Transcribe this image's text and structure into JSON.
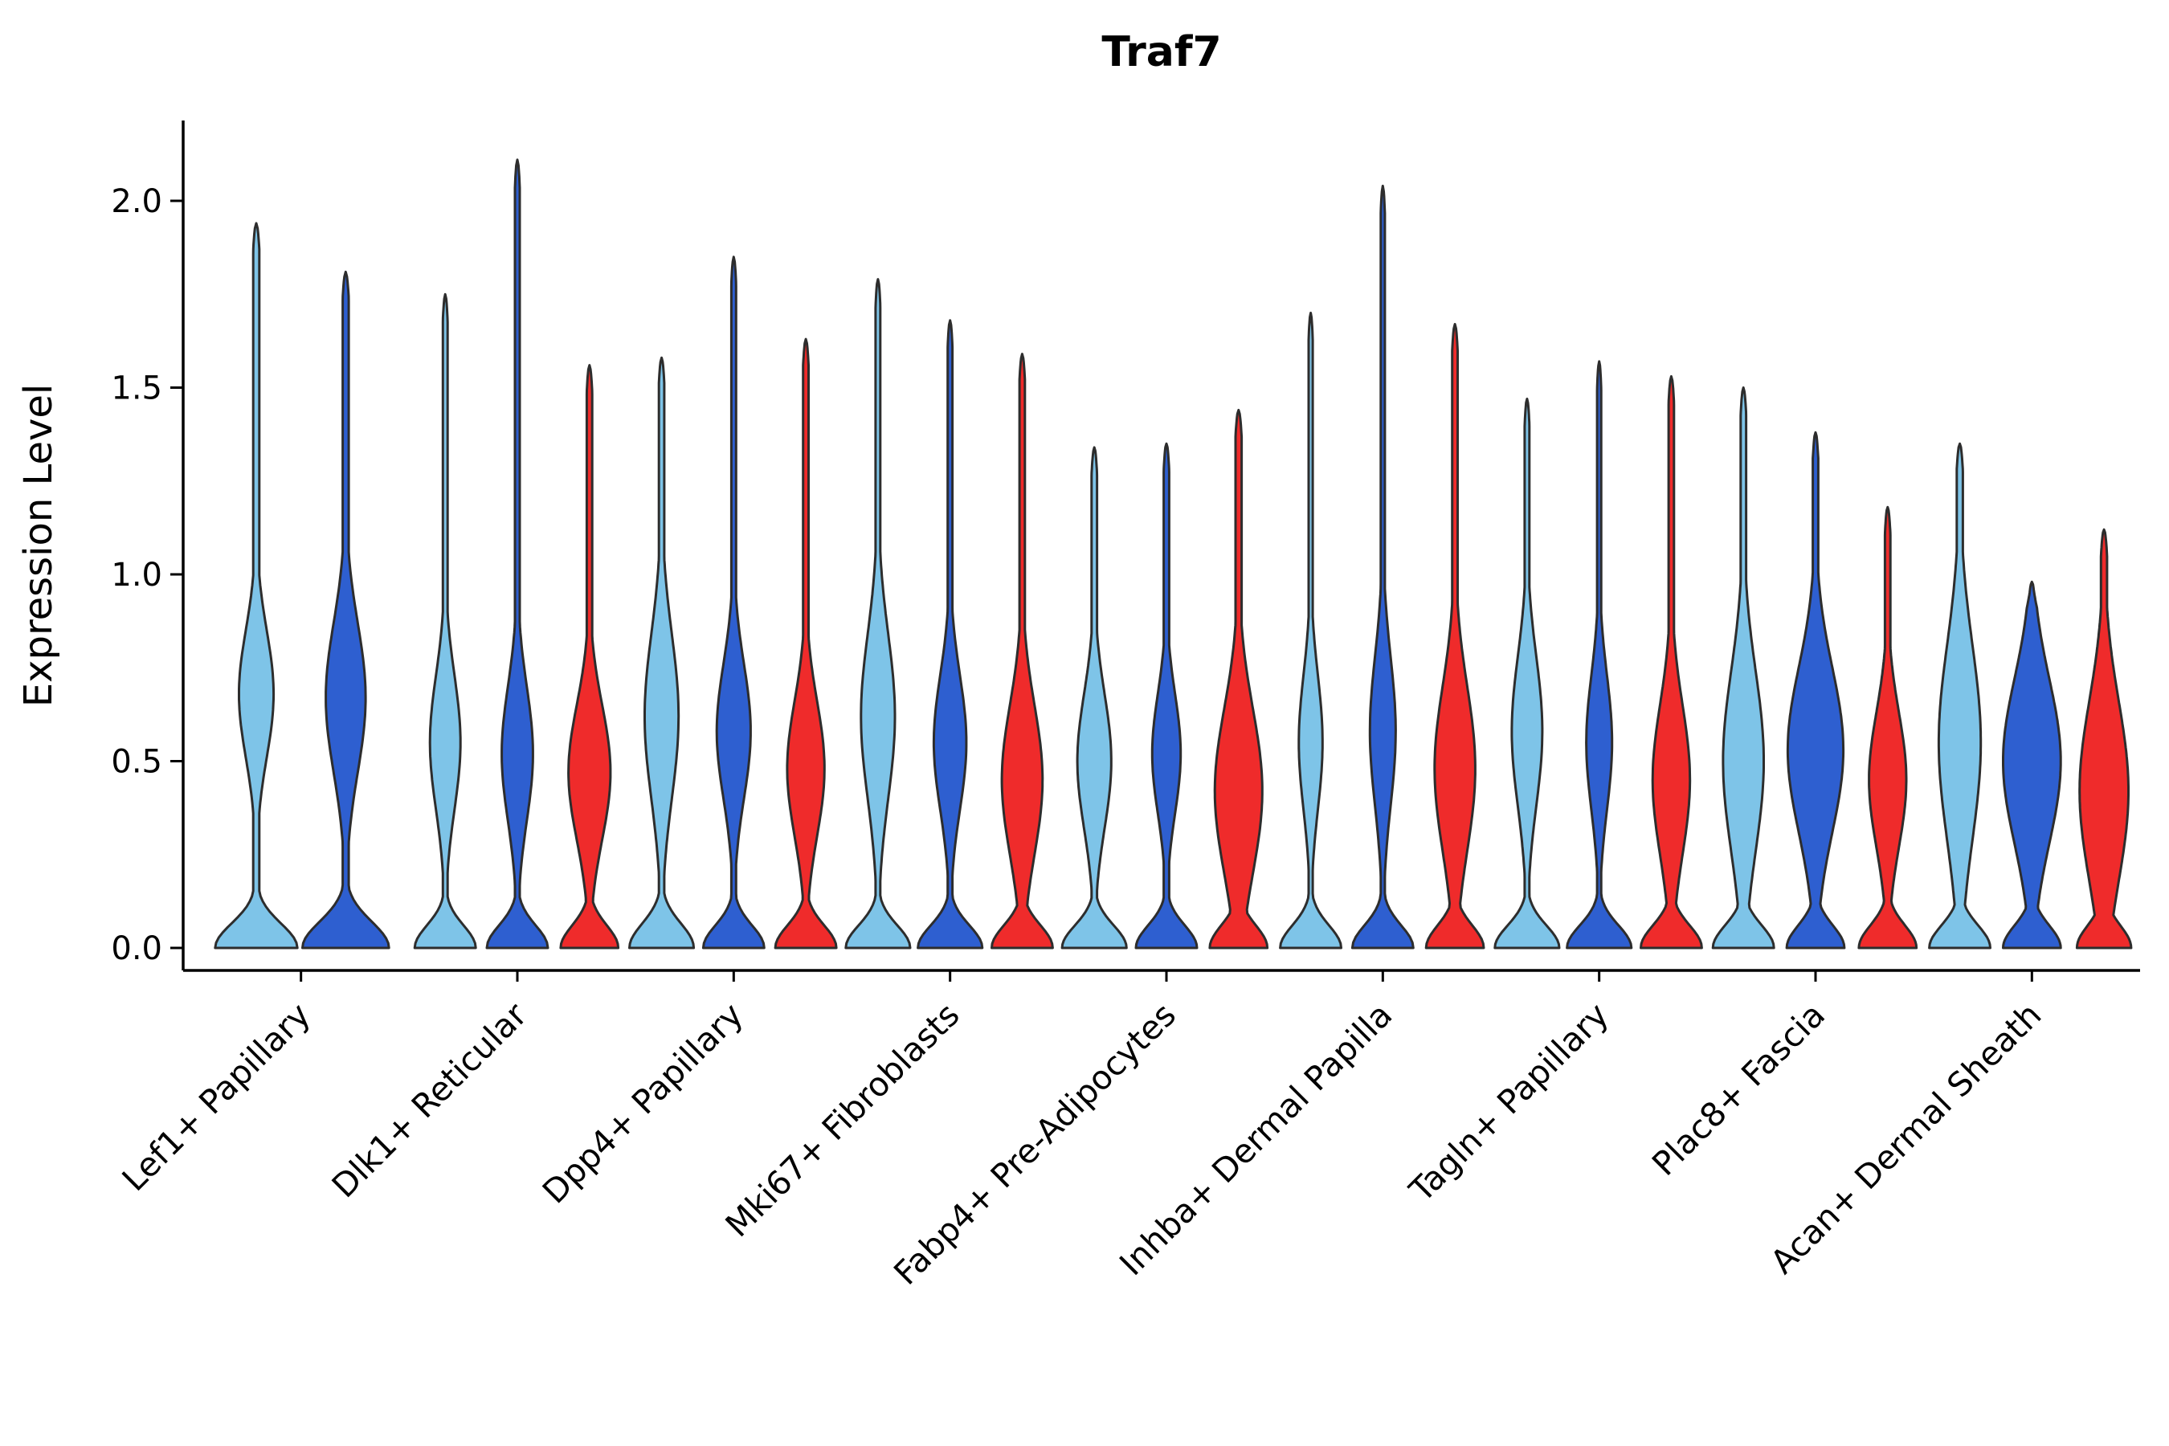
{
  "chart_data": {
    "type": "violin",
    "title": "Traf7",
    "ylabel": "Expression Level",
    "xlabel": "",
    "ylim": [
      0,
      2.2
    ],
    "grid": false,
    "legend": "none",
    "yticks": [
      {
        "value": 0.0,
        "label": "0.0"
      },
      {
        "value": 0.5,
        "label": "0.5"
      },
      {
        "value": 1.0,
        "label": "1.0"
      },
      {
        "value": 1.5,
        "label": "1.5"
      },
      {
        "value": 2.0,
        "label": "2.0"
      }
    ],
    "palette": {
      "light_blue": "#7EC4E8",
      "dark_blue": "#2E5FD0",
      "red": "#EF2B2B",
      "outline": "#2d2d2d"
    },
    "groups": [
      {
        "label": "Lef1+ Papillary",
        "violins": [
          {
            "color": "light_blue",
            "max": 1.94,
            "base_w": 0.95,
            "base_s": 0.065,
            "bulge_y": 0.68,
            "bulge_w": 0.4,
            "bulge_s": 0.17,
            "stem_w": 0.07
          },
          {
            "color": "dark_blue",
            "max": 1.81,
            "base_w": 1.0,
            "base_s": 0.07,
            "bulge_y": 0.67,
            "bulge_w": 0.46,
            "bulge_s": 0.2,
            "stem_w": 0.07
          }
        ]
      },
      {
        "label": "Dlk1+ Reticular",
        "violins": [
          {
            "color": "light_blue",
            "max": 1.75,
            "base_w": 0.9,
            "base_s": 0.06,
            "bulge_y": 0.55,
            "bulge_w": 0.45,
            "bulge_s": 0.18,
            "stem_w": 0.07
          },
          {
            "color": "dark_blue",
            "max": 2.11,
            "base_w": 0.9,
            "base_s": 0.06,
            "bulge_y": 0.52,
            "bulge_w": 0.46,
            "bulge_s": 0.18,
            "stem_w": 0.07
          },
          {
            "color": "red",
            "max": 1.56,
            "base_w": 0.85,
            "base_s": 0.06,
            "bulge_y": 0.47,
            "bulge_w": 0.62,
            "bulge_s": 0.18,
            "stem_w": 0.08
          }
        ]
      },
      {
        "label": "Dpp4+ Papillary",
        "violins": [
          {
            "color": "light_blue",
            "max": 1.58,
            "base_w": 0.95,
            "base_s": 0.065,
            "bulge_y": 0.62,
            "bulge_w": 0.5,
            "bulge_s": 0.22,
            "stem_w": 0.08
          },
          {
            "color": "dark_blue",
            "max": 1.85,
            "base_w": 0.9,
            "base_s": 0.06,
            "bulge_y": 0.58,
            "bulge_w": 0.5,
            "bulge_s": 0.18,
            "stem_w": 0.07
          },
          {
            "color": "red",
            "max": 1.63,
            "base_w": 0.9,
            "base_s": 0.06,
            "bulge_y": 0.48,
            "bulge_w": 0.55,
            "bulge_s": 0.18,
            "stem_w": 0.08
          }
        ]
      },
      {
        "label": "Mki67+ Fibroblasts",
        "violins": [
          {
            "color": "light_blue",
            "max": 1.79,
            "base_w": 0.95,
            "base_s": 0.06,
            "bulge_y": 0.62,
            "bulge_w": 0.5,
            "bulge_s": 0.22,
            "stem_w": 0.07
          },
          {
            "color": "dark_blue",
            "max": 1.68,
            "base_w": 0.95,
            "base_s": 0.06,
            "bulge_y": 0.55,
            "bulge_w": 0.48,
            "bulge_s": 0.18,
            "stem_w": 0.07
          },
          {
            "color": "red",
            "max": 1.59,
            "base_w": 0.9,
            "base_s": 0.06,
            "bulge_y": 0.45,
            "bulge_w": 0.6,
            "bulge_s": 0.2,
            "stem_w": 0.08
          }
        ]
      },
      {
        "label": "Fabp4+ Pre-Adipocytes",
        "violins": [
          {
            "color": "light_blue",
            "max": 1.34,
            "base_w": 0.95,
            "base_s": 0.06,
            "bulge_y": 0.5,
            "bulge_w": 0.5,
            "bulge_s": 0.18,
            "stem_w": 0.08
          },
          {
            "color": "dark_blue",
            "max": 1.35,
            "base_w": 0.9,
            "base_s": 0.06,
            "bulge_y": 0.52,
            "bulge_w": 0.42,
            "bulge_s": 0.16,
            "stem_w": 0.08
          },
          {
            "color": "red",
            "max": 1.44,
            "base_w": 0.85,
            "base_s": 0.06,
            "bulge_y": 0.42,
            "bulge_w": 0.7,
            "bulge_s": 0.22,
            "stem_w": 0.09
          }
        ]
      },
      {
        "label": "Inhba+ Dermal Papilla",
        "violins": [
          {
            "color": "light_blue",
            "max": 1.7,
            "base_w": 0.9,
            "base_s": 0.06,
            "bulge_y": 0.55,
            "bulge_w": 0.35,
            "bulge_s": 0.18,
            "stem_w": 0.06
          },
          {
            "color": "dark_blue",
            "max": 2.04,
            "base_w": 0.9,
            "base_s": 0.06,
            "bulge_y": 0.58,
            "bulge_w": 0.38,
            "bulge_s": 0.2,
            "stem_w": 0.06
          },
          {
            "color": "red",
            "max": 1.67,
            "base_w": 0.85,
            "base_s": 0.06,
            "bulge_y": 0.48,
            "bulge_w": 0.6,
            "bulge_s": 0.22,
            "stem_w": 0.08
          }
        ]
      },
      {
        "label": "Tagln+ Papillary",
        "violins": [
          {
            "color": "light_blue",
            "max": 1.47,
            "base_w": 0.95,
            "base_s": 0.06,
            "bulge_y": 0.58,
            "bulge_w": 0.45,
            "bulge_s": 0.2,
            "stem_w": 0.07
          },
          {
            "color": "dark_blue",
            "max": 1.57,
            "base_w": 0.95,
            "base_s": 0.06,
            "bulge_y": 0.55,
            "bulge_w": 0.38,
            "bulge_s": 0.18,
            "stem_w": 0.06
          },
          {
            "color": "red",
            "max": 1.53,
            "base_w": 0.9,
            "base_s": 0.06,
            "bulge_y": 0.45,
            "bulge_w": 0.55,
            "bulge_s": 0.2,
            "stem_w": 0.08
          }
        ]
      },
      {
        "label": "Plac8+ Fascia",
        "violins": [
          {
            "color": "light_blue",
            "max": 1.5,
            "base_w": 0.9,
            "base_s": 0.06,
            "bulge_y": 0.5,
            "bulge_w": 0.6,
            "bulge_s": 0.24,
            "stem_w": 0.08
          },
          {
            "color": "dark_blue",
            "max": 1.38,
            "base_w": 0.85,
            "base_s": 0.06,
            "bulge_y": 0.53,
            "bulge_w": 0.82,
            "bulge_s": 0.22,
            "stem_w": 0.08
          },
          {
            "color": "red",
            "max": 1.18,
            "base_w": 0.85,
            "base_s": 0.06,
            "bulge_y": 0.45,
            "bulge_w": 0.55,
            "bulge_s": 0.18,
            "stem_w": 0.08
          }
        ]
      },
      {
        "label": "Acan+ Dermal Sheath",
        "violins": [
          {
            "color": "light_blue",
            "max": 1.35,
            "base_w": 0.9,
            "base_s": 0.06,
            "bulge_y": 0.55,
            "bulge_w": 0.62,
            "bulge_s": 0.26,
            "stem_w": 0.09
          },
          {
            "color": "dark_blue",
            "max": 0.98,
            "base_w": 0.85,
            "base_s": 0.06,
            "bulge_y": 0.5,
            "bulge_w": 0.85,
            "bulge_s": 0.22,
            "stem_w": 0.1
          },
          {
            "color": "red",
            "max": 1.12,
            "base_w": 0.8,
            "base_s": 0.06,
            "bulge_y": 0.42,
            "bulge_w": 0.72,
            "bulge_s": 0.24,
            "stem_w": 0.09
          }
        ]
      }
    ]
  }
}
